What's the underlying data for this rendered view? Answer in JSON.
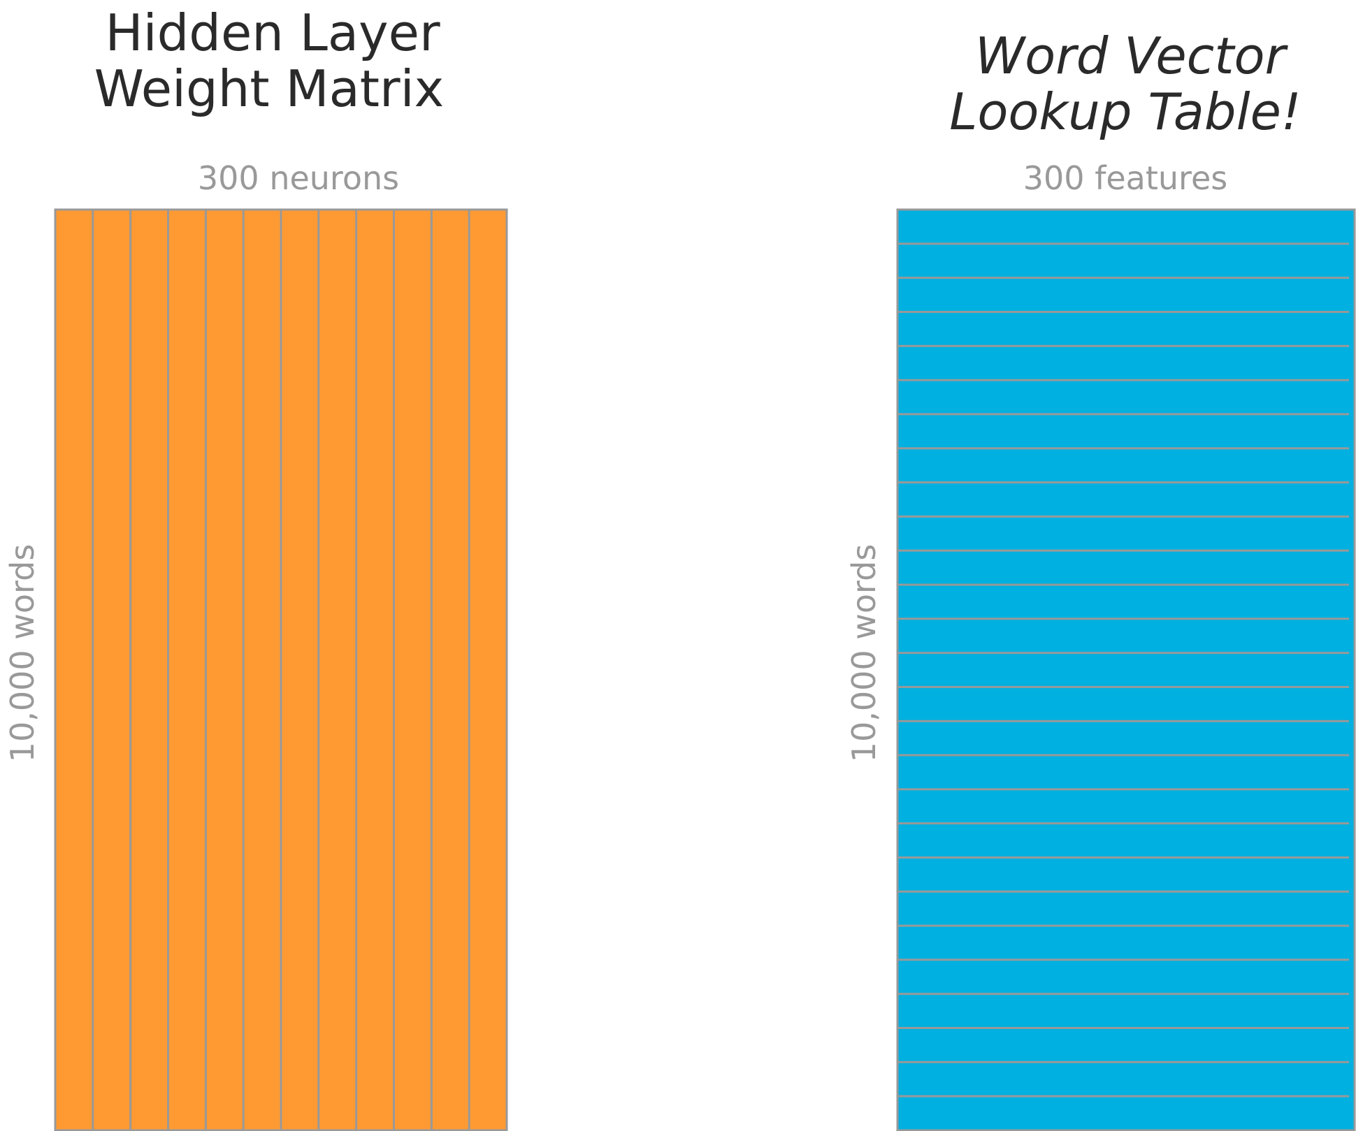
{
  "left_panel": {
    "title_line1": "Hidden Layer",
    "title_line2": "Weight Matrix",
    "column_label": "300 neurons",
    "row_label": "10,000 words",
    "fill_color": "#FF9A33",
    "column_divisions": 12
  },
  "right_panel": {
    "title_line1": "Word Vector",
    "title_line2": "Lookup Table!",
    "column_label": "300 features",
    "row_label": "10,000 words",
    "fill_color": "#00B0E0",
    "row_divisions": 27
  },
  "colors": {
    "grid_line": "#999999",
    "title_text": "#2a2a2a",
    "label_text": "#999999"
  }
}
